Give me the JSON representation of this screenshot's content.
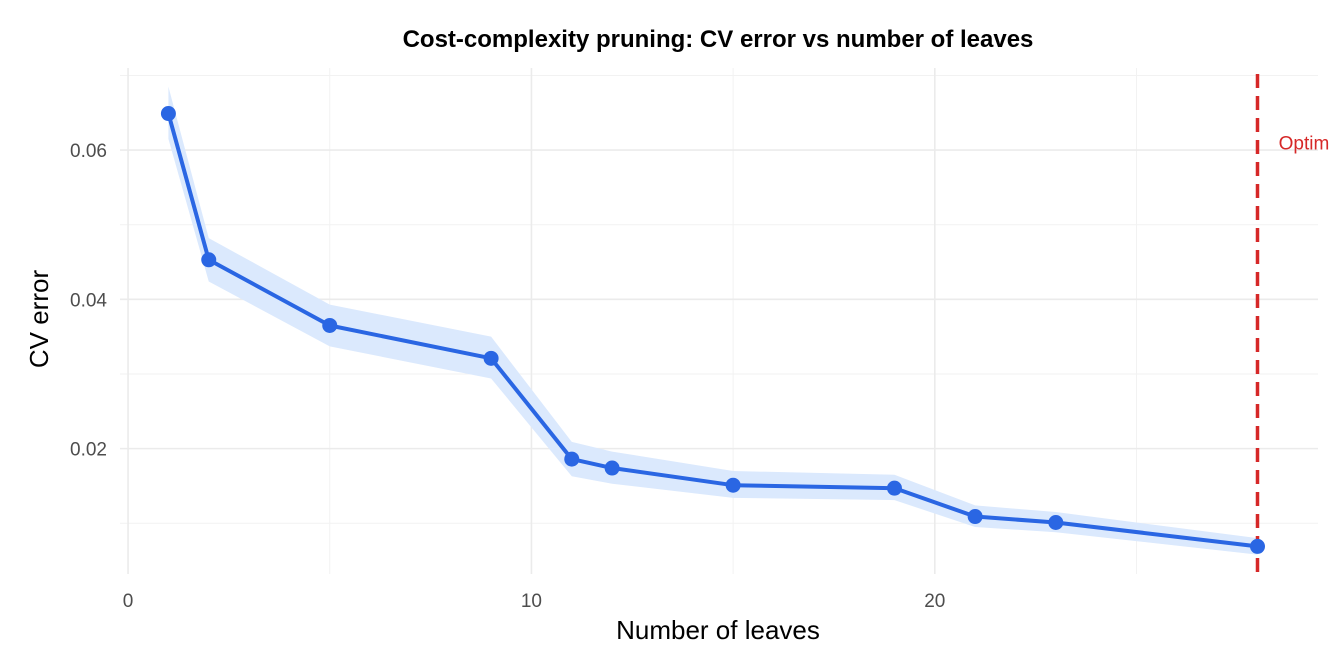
{
  "chart_data": {
    "type": "line",
    "title": "Cost-complexity pruning: CV error vs number of leaves",
    "xlabel": "Number of leaves",
    "ylabel": "CV error",
    "xlim": [
      -0.2,
      29.5
    ],
    "ylim": [
      0.0032,
      0.071
    ],
    "x_ticks": [
      0,
      10,
      20
    ],
    "x_tick_labels": [
      "0",
      "10",
      "20"
    ],
    "y_ticks": [
      0.02,
      0.04,
      0.06
    ],
    "y_tick_labels": [
      "0.02",
      "0.04",
      "0.06"
    ],
    "grid": true,
    "legend": "none",
    "colors": {
      "line": "#2a66e3",
      "band": "#dbe9fd",
      "marker": "#d62828"
    },
    "series": [
      {
        "x": [
          1,
          2,
          5,
          9,
          11,
          12,
          15,
          19,
          21,
          23,
          28
        ],
        "values": [
          0.0649,
          0.0453,
          0.0365,
          0.0321,
          0.0186,
          0.0174,
          0.0151,
          0.0147,
          0.0109,
          0.0101,
          0.0069
        ],
        "lower": [
          0.0615,
          0.0424,
          0.0337,
          0.0294,
          0.0163,
          0.0153,
          0.0134,
          0.0131,
          0.0095,
          0.0088,
          0.0058
        ],
        "upper": [
          0.0685,
          0.0482,
          0.0393,
          0.035,
          0.0209,
          0.0196,
          0.017,
          0.0165,
          0.0124,
          0.0115,
          0.008
        ]
      }
    ],
    "vline": {
      "x": 28
    },
    "annotation": {
      "text": "Optim",
      "x": 28.5,
      "y": 0.061
    }
  }
}
